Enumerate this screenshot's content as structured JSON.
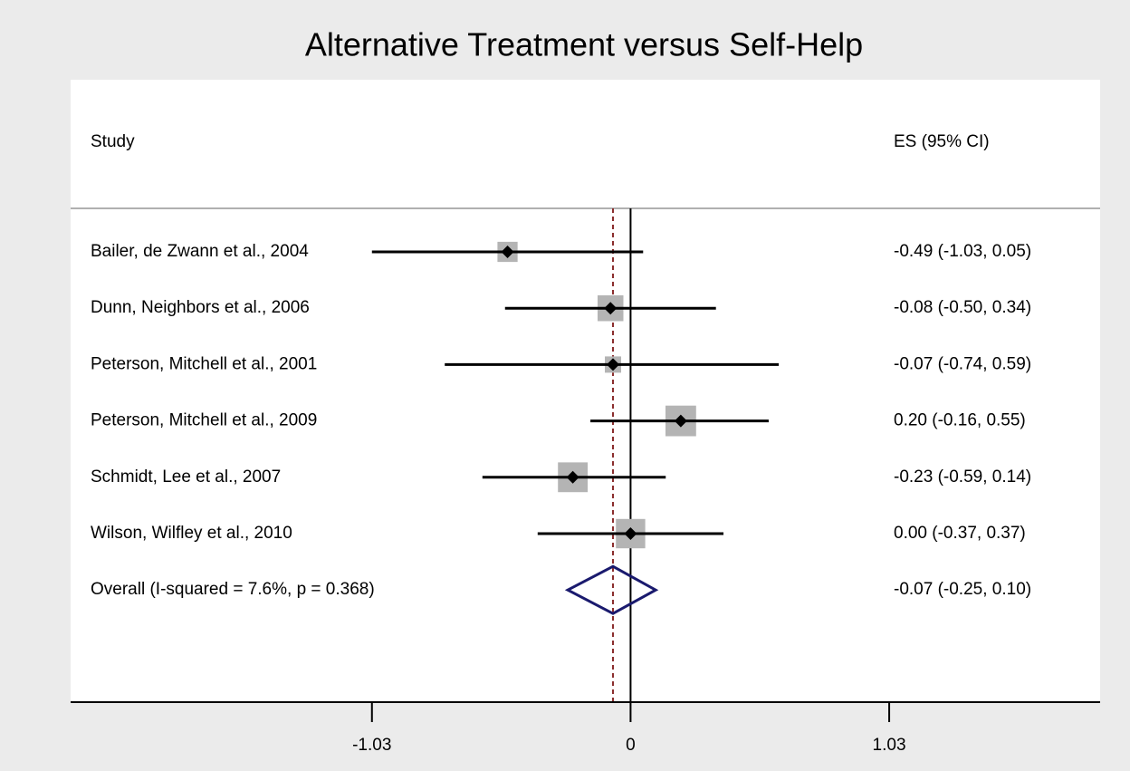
{
  "chart_data": {
    "type": "forest",
    "title": "Alternative Treatment versus Self-Help",
    "column_headers": [
      "Study",
      "ES (95% CI)"
    ],
    "categories": [
      "Bailer, de Zwann et al., 2004",
      "Dunn, Neighbors et al., 2006",
      "Peterson, Mitchell et al., 2001",
      "Peterson, Mitchell et al., 2009",
      "Schmidt, Lee et al., 2007",
      "Wilson, Wilfley et al., 2010"
    ],
    "values": [
      -0.49,
      -0.08,
      -0.07,
      0.2,
      -0.23,
      0.0
    ],
    "ci_low": [
      -1.03,
      -0.5,
      -0.74,
      -0.16,
      -0.59,
      -0.37
    ],
    "ci_high": [
      0.05,
      0.34,
      0.59,
      0.55,
      0.14,
      0.37
    ],
    "value_labels": [
      "-0.49 (-1.03, 0.05)",
      "-0.08 (-0.50, 0.34)",
      "-0.07 (-0.74, 0.59)",
      "0.20 (-0.16, 0.55)",
      "-0.23 (-0.59, 0.14)",
      "0.00 (-0.37, 0.37)"
    ],
    "weights": [
      10.1,
      16.6,
      6.6,
      23.3,
      22.0,
      21.4
    ],
    "overall": {
      "label": "Overall  (I-squared = 7.6%, p = 0.368)",
      "value": -0.07,
      "ci_low": -0.25,
      "ci_high": 0.1,
      "value_label": "-0.07 (-0.25, 0.10)"
    },
    "xlim": [
      -2.23,
      1.87
    ],
    "xticks": [
      -1.03,
      0,
      1.03
    ],
    "box_color": "#b4b4b4",
    "diamond_color": "#1a1a6e",
    "overall_line_color": "#8b2e2e"
  }
}
